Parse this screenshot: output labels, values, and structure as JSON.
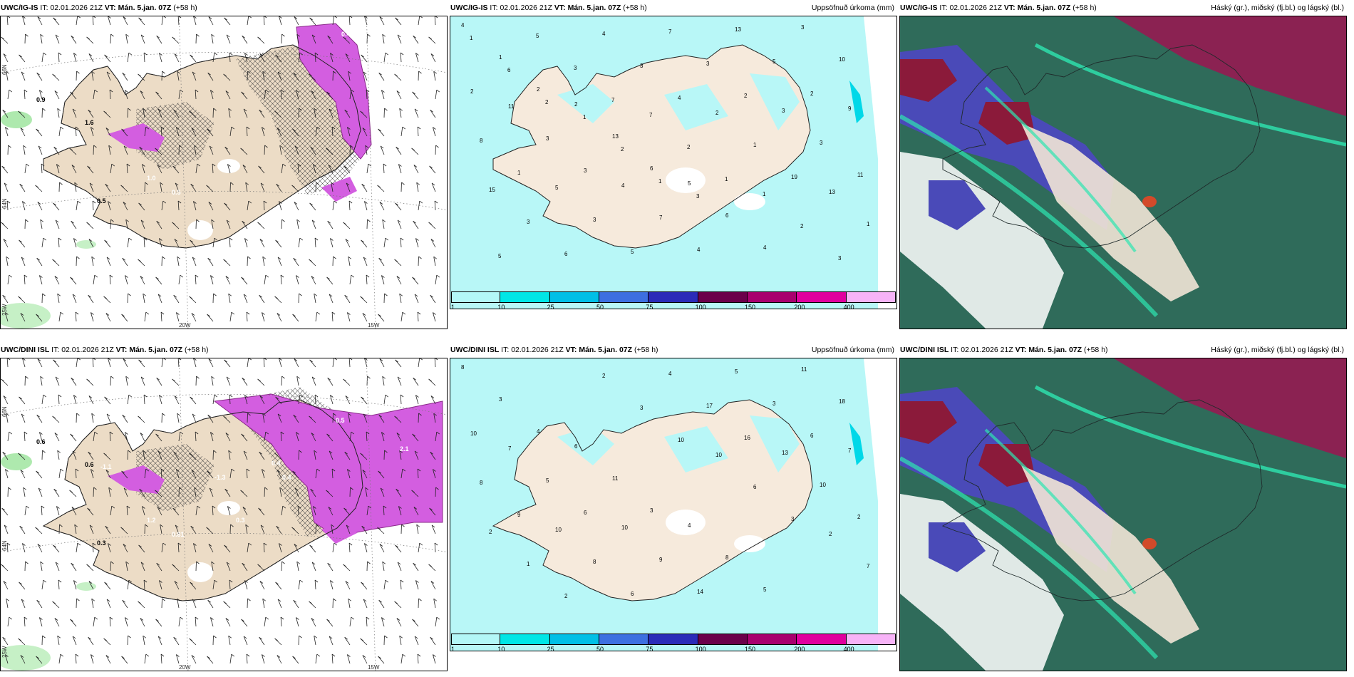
{
  "panels": [
    {
      "model": "UWC/IG-IS",
      "it_label": "IT:",
      "it": "02.01.2026 21Z",
      "vt_label": "VT:",
      "vt": "Mán. 5.jan. 07Z",
      "lead": "(+58 h)",
      "field": ""
    },
    {
      "model": "UWC/IG-IS",
      "it_label": "IT:",
      "it": "02.01.2026 21Z",
      "vt_label": "VT:",
      "vt": "Mán. 5.jan. 07Z",
      "lead": "(+58 h)",
      "field": "Uppsöfnuð úrkoma (mm)"
    },
    {
      "model": "UWC/IG-IS",
      "it_label": "IT:",
      "it": "02.01.2026 21Z",
      "vt_label": "VT:",
      "vt": "Mán. 5.jan. 07Z",
      "lead": "(+58 h)",
      "field": "Háský (gr.), miðský (fj.bl.) og lágský (bl.)"
    },
    {
      "model": "UWC/DINI ISL",
      "it_label": "IT:",
      "it": "02.01.2026 21Z",
      "vt_label": "VT:",
      "vt": "Mán. 5.jan. 07Z",
      "lead": "(+58 h)",
      "field": ""
    },
    {
      "model": "UWC/DINI ISL",
      "it_label": "IT:",
      "it": "02.01.2026 21Z",
      "vt_label": "VT:",
      "vt": "Mán. 5.jan. 07Z",
      "lead": "(+58 h)",
      "field": "Uppsöfnuð úrkoma (mm)"
    },
    {
      "model": "UWC/DINI ISL",
      "it_label": "IT:",
      "it": "02.01.2026 21Z",
      "vt_label": "VT:",
      "vt": "Mán. 5.jan. 07Z",
      "lead": "(+58 h)",
      "field": "Háský (gr.), miðský (fj.bl.) og lágský (bl.)"
    }
  ],
  "grid_labels": {
    "lon_20w": "20W",
    "lon_15w": "15W",
    "lat_66n": "66N",
    "lat_64n": "64N",
    "lon_25w": "25W",
    "lat_66n_r": "66N",
    "lat_64n_r": "64N"
  },
  "colorbar": {
    "ticks": [
      "1",
      "10",
      "25",
      "50",
      "75",
      "100",
      "150",
      "200",
      "400"
    ],
    "colors": [
      "#b3f7f7",
      "#00e6e6",
      "#00bfe6",
      "#3d6fe0",
      "#2b2bb8",
      "#6b004a",
      "#a8006e",
      "#e0009e",
      "#f7b3f7"
    ]
  },
  "precip_values_top": [
    "4",
    "1",
    "2",
    "2",
    "13",
    "6",
    "5",
    "6",
    "4",
    "3",
    "10",
    "2",
    "11",
    "3",
    "3",
    "4",
    "7",
    "4",
    "13",
    "5",
    "2",
    "9",
    "8",
    "1",
    "5",
    "3",
    "5",
    "7",
    "3",
    "2",
    "3",
    "3",
    "11",
    "15",
    "3",
    "6",
    "4",
    "3",
    "4",
    "2",
    "1",
    "19",
    "13",
    "1",
    "5",
    "5",
    "3",
    "7",
    "7",
    "2",
    "1",
    "1",
    "2",
    "3",
    "1",
    "6",
    "2",
    "1",
    "2",
    "1",
    "3"
  ],
  "precip_values_bottom": [
    "8",
    "3",
    "4",
    "6",
    "11",
    "3",
    "4",
    "8",
    "5",
    "11",
    "18",
    "10",
    "7",
    "5",
    "6",
    "10",
    "9",
    "14",
    "5",
    "3",
    "6",
    "7",
    "8",
    "9",
    "10",
    "8",
    "6",
    "4",
    "17",
    "16",
    "13",
    "10",
    "2",
    "2",
    "1",
    "2",
    "2",
    "3",
    "10",
    "10",
    "6",
    "3",
    "2",
    "7"
  ],
  "ts_values_top": [
    "0.9",
    "1.6",
    "0.5",
    "0.4",
    "0.3",
    "1.0",
    "0.5"
  ],
  "ts_values_bottom": [
    "0.6",
    "0.6",
    "0.3",
    "0.5",
    "2.1",
    "1.2",
    "0.81",
    "0.7",
    "-1.1",
    "-1.3",
    "0.4",
    "0.5",
    "0.4",
    "1.1",
    "0.3"
  ]
}
